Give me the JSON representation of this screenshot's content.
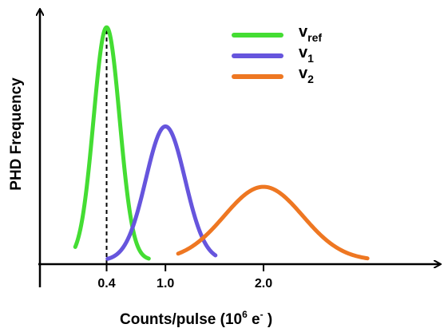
{
  "chart_data": {
    "type": "line",
    "title": "",
    "xlabel": {
      "text": "Counts/pulse (10",
      "superscript": "6",
      "suffix_main": " e",
      "suffix_sup": "-",
      "suffix_close": " )"
    },
    "ylabel": "PHD Frequency",
    "xlim": [
      -0.28,
      3.8
    ],
    "ylim": [
      0,
      1.06
    ],
    "grid": false,
    "legend_position": "top-right",
    "x_ticks": [
      {
        "value": 0.4,
        "label": "0.4"
      },
      {
        "value": 1.0,
        "label": "1.0"
      },
      {
        "value": 2.0,
        "label": "2.0"
      }
    ],
    "reference_line": {
      "x": 0.4,
      "style": "dashed",
      "y_top": 0.98
    },
    "series": [
      {
        "name": "v",
        "subscript": "ref",
        "color": "#44dd33",
        "mean": 0.4,
        "sd": 0.133,
        "peak": 0.98,
        "baseline": 0.018,
        "x_range": [
          0.08,
          0.83
        ]
      },
      {
        "name": "v",
        "subscript": "1",
        "color": "#6655dd",
        "mean": 1.0,
        "sd": 0.2,
        "peak": 0.57,
        "baseline": 0.015,
        "x_range": [
          0.41,
          1.51
        ]
      },
      {
        "name": "v",
        "subscript": "2",
        "color": "#ee7722",
        "mean": 2.0,
        "sd": 0.4,
        "peak": 0.32,
        "baseline": 0.015,
        "x_range": [
          1.13,
          3.06
        ]
      }
    ]
  }
}
